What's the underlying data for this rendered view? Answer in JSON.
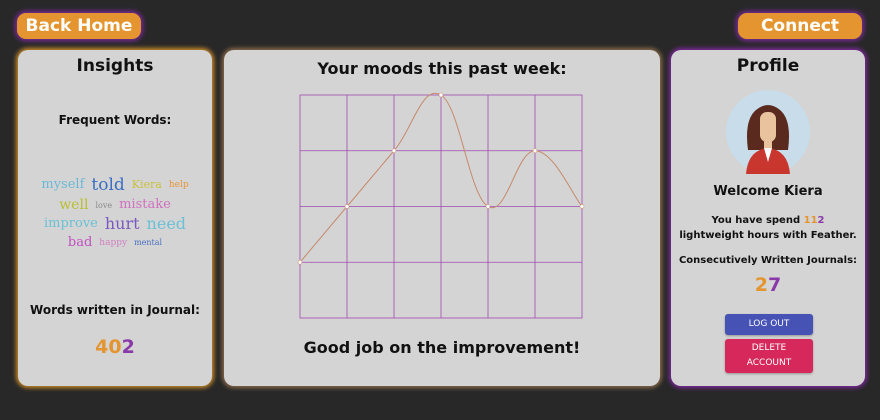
{
  "header": {
    "back_label": "Back Home",
    "connect_label": "Connect"
  },
  "insights": {
    "title": "Insights",
    "frequent_label": "Frequent Words:",
    "words": [
      {
        "t": "myself",
        "c": "#6bb8d6"
      },
      {
        "t": "told",
        "c": "#3a6fc0"
      },
      {
        "t": "Kiera",
        "c": "#c8c040"
      },
      {
        "t": "help",
        "c": "#e8953a"
      },
      {
        "t": "well",
        "c": "#b8c030"
      },
      {
        "t": "love",
        "c": "#888"
      },
      {
        "t": "mistake",
        "c": "#d070c0"
      },
      {
        "t": "improve",
        "c": "#6bc0d6"
      },
      {
        "t": "hurt",
        "c": "#7a5ac0"
      },
      {
        "t": "need",
        "c": "#6bc0d6"
      },
      {
        "t": "bad",
        "c": "#c050c0"
      },
      {
        "t": "happy",
        "c": "#d080c0"
      },
      {
        "t": "mental",
        "c": "#4a70c0"
      }
    ],
    "words_label": "Words written in Journal:",
    "words_count_a": "40",
    "words_count_b": "2"
  },
  "mood": {
    "title": "Your moods this past week:",
    "message": "Good job on the improvement!"
  },
  "chart_data": {
    "type": "line",
    "values": [
      1,
      2,
      3,
      4,
      2,
      3,
      2
    ],
    "ylim": [
      0,
      4
    ],
    "grid": true,
    "line_color": "#c58a6e",
    "grid_color": "#a04ab0"
  },
  "profile": {
    "title": "Profile",
    "welcome": "Welcome Kiera",
    "spend_a": "You have spend ",
    "hours_a": "11",
    "hours_b": "2",
    "spend_b": " lightweight hours with Feather.",
    "journals_label": "Consecutively Written Journals:",
    "journals_a": "2",
    "journals_b": "7",
    "logout_label": "LOG OUT",
    "delete_label": "DELETE ACCOUNT"
  },
  "colors": {
    "orange": "#e4952f",
    "purple": "#8a3aa8",
    "logout": "#4652b4",
    "delete": "#d6285a"
  }
}
